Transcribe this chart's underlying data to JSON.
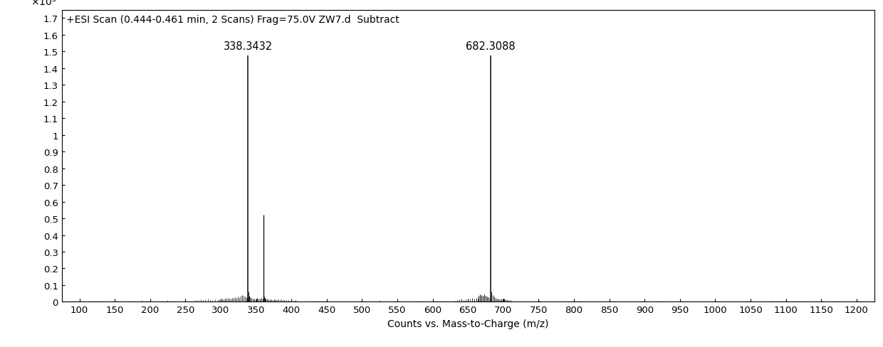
{
  "title": "+ESI Scan (0.444-0.461 min, 2 Scans) Frag=75.0V ZW7.d  Subtract",
  "xlabel": "Counts vs. Mass-to-Charge (m/z)",
  "xmin": 75,
  "xmax": 1225,
  "ymin": 0,
  "ymax": 1.75,
  "yticks": [
    0,
    0.1,
    0.2,
    0.3,
    0.4,
    0.5,
    0.6,
    0.7,
    0.8,
    0.9,
    1.0,
    1.1,
    1.2,
    1.3,
    1.4,
    1.5,
    1.6,
    1.7
  ],
  "xticks": [
    100,
    150,
    200,
    250,
    300,
    350,
    400,
    450,
    500,
    550,
    600,
    650,
    700,
    750,
    800,
    850,
    900,
    950,
    1000,
    1050,
    1100,
    1150,
    1200
  ],
  "background_color": "#ffffff",
  "line_color": "#1a1a1a",
  "title_fontsize": 10,
  "tick_fontsize": 9.5,
  "label_fontsize": 10,
  "peak1_mz": 338.3432,
  "peak1_intensity": 1.475,
  "peak1_label": "338.3432",
  "peak2_mz": 682.3088,
  "peak2_intensity": 1.475,
  "peak2_label": "682.3088",
  "secondary_peak_mz": 360.5,
  "secondary_peak_intensity": 0.52
}
